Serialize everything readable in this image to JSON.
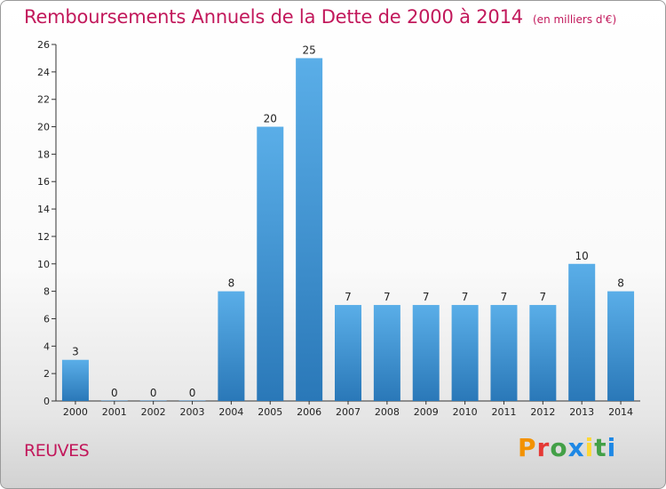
{
  "header": {
    "title": "Remboursements Annuels de la Dette de 2000 à 2014",
    "subtitle": "(en milliers d'€)"
  },
  "footer": {
    "commune": "REUVES",
    "logo_text": "Proxiti"
  },
  "colors": {
    "title": "#c2185b",
    "bar_top": "#5aaee8",
    "bar_bottom": "#2a78b8",
    "axis": "#333333",
    "grid_tick": "#333333",
    "logo_letters": [
      "#f39200",
      "#e53935",
      "#43a047",
      "#1e88e5",
      "#fdd835",
      "#43a047",
      "#1e88e5"
    ]
  },
  "chart_data": {
    "type": "bar",
    "title": "Remboursements Annuels de la Dette de 2000 à 2014",
    "subtitle": "(en milliers d'€)",
    "xlabel": "",
    "ylabel": "",
    "categories": [
      "2000",
      "2001",
      "2002",
      "2003",
      "2004",
      "2005",
      "2006",
      "2007",
      "2008",
      "2009",
      "2010",
      "2011",
      "2012",
      "2013",
      "2014"
    ],
    "values": [
      3,
      0,
      0,
      0,
      8,
      20,
      25,
      7,
      7,
      7,
      7,
      7,
      7,
      10,
      8
    ],
    "ylim": [
      0,
      26
    ],
    "yticks": [
      0,
      2,
      4,
      6,
      8,
      10,
      12,
      14,
      16,
      18,
      20,
      22,
      24,
      26
    ],
    "grid": false,
    "legend": "none"
  }
}
